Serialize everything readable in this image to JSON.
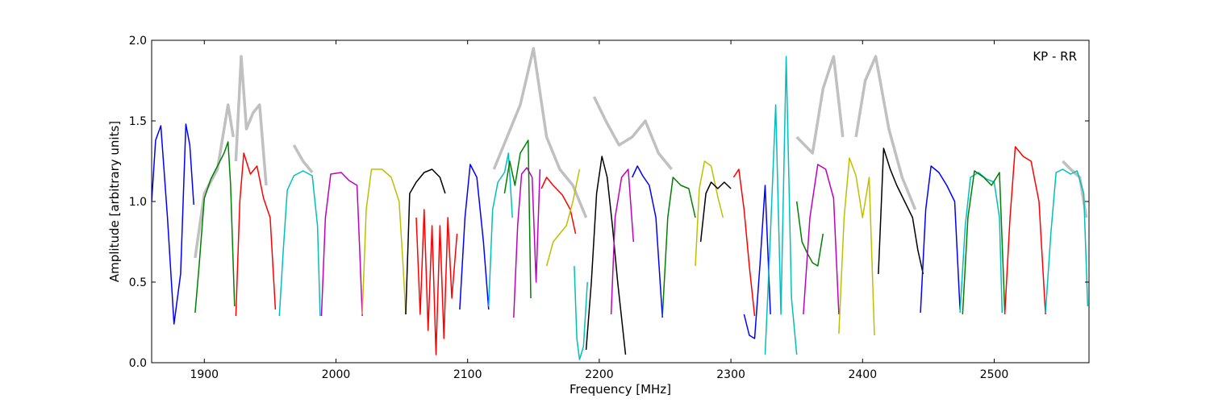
{
  "chart_data": {
    "type": "line",
    "title": "",
    "xlabel": "Frequency [MHz]",
    "ylabel": "Amplitude [arbitrary units]",
    "annotation": "KP - RR",
    "xlim": [
      1860,
      2572
    ],
    "ylim": [
      0.0,
      2.0
    ],
    "xticks": [
      1900,
      2000,
      2100,
      2200,
      2300,
      2400,
      2500
    ],
    "yticks": [
      0.0,
      0.5,
      1.0,
      1.5,
      2.0
    ],
    "xtick_labels": [
      "1900",
      "2000",
      "2100",
      "2200",
      "2300",
      "2400",
      "2500"
    ],
    "ytick_labels": [
      "0.0",
      "0.5",
      "1.0",
      "1.5",
      "2.0"
    ],
    "grid": false,
    "legend": "none",
    "reference_color": "#c0c0c0",
    "colors": [
      "#0000ff",
      "#008000",
      "#ff0000",
      "#00bfbf",
      "#bf00bf",
      "#bfbf00",
      "#000000"
    ],
    "series": [
      {
        "color": "#0000ff",
        "x": [
          1860,
          1863,
          1867,
          1872,
          1877,
          1882,
          1886,
          1889,
          1892
        ],
        "y": [
          1.0,
          1.38,
          1.47,
          0.9,
          0.24,
          0.55,
          1.48,
          1.35,
          0.98
        ]
      },
      {
        "color": "#008000",
        "x": [
          1893,
          1896,
          1900,
          1905,
          1910,
          1915,
          1918,
          1920,
          1923
        ],
        "y": [
          0.31,
          0.6,
          1.02,
          1.14,
          1.22,
          1.3,
          1.37,
          1.1,
          0.35
        ]
      },
      {
        "color": "#ff0000",
        "x": [
          1924,
          1927,
          1930,
          1935,
          1940,
          1945,
          1950,
          1954
        ],
        "y": [
          0.29,
          1.0,
          1.3,
          1.17,
          1.22,
          1.02,
          0.9,
          0.33
        ]
      },
      {
        "color": "#00bfbf",
        "x": [
          1957,
          1960,
          1963,
          1968,
          1975,
          1982,
          1986,
          1988
        ],
        "y": [
          0.29,
          0.7,
          1.07,
          1.16,
          1.19,
          1.16,
          0.85,
          0.29
        ]
      },
      {
        "color": "#bf00bf",
        "x": [
          1989,
          1992,
          1996,
          2004,
          2010,
          2016,
          2018,
          2020
        ],
        "y": [
          0.29,
          0.9,
          1.17,
          1.18,
          1.13,
          1.1,
          0.7,
          0.29
        ]
      },
      {
        "color": "#bfbf00",
        "x": [
          2020,
          2023,
          2027,
          2035,
          2042,
          2048,
          2051,
          2053
        ],
        "y": [
          0.3,
          0.95,
          1.2,
          1.2,
          1.15,
          1.0,
          0.6,
          0.3
        ]
      },
      {
        "color": "#000000",
        "x": [
          2053,
          2056,
          2061,
          2067,
          2073,
          2079,
          2083
        ],
        "y": [
          0.3,
          1.05,
          1.12,
          1.18,
          1.2,
          1.15,
          1.05
        ]
      },
      {
        "color": "#ff0000",
        "x": [
          2061,
          2064,
          2067,
          2070,
          2073,
          2076,
          2079,
          2082,
          2085,
          2088,
          2092
        ],
        "y": [
          0.9,
          0.3,
          0.95,
          0.2,
          0.85,
          0.05,
          0.85,
          0.15,
          0.9,
          0.4,
          0.8
        ]
      },
      {
        "color": "#0000ff",
        "x": [
          2094,
          2098,
          2102,
          2107,
          2112,
          2116
        ],
        "y": [
          0.33,
          0.9,
          1.23,
          1.15,
          0.75,
          0.33
        ]
      },
      {
        "color": "#00bfbf",
        "x": [
          2116,
          2119,
          2123,
          2128,
          2131,
          2134
        ],
        "y": [
          0.35,
          0.95,
          1.12,
          1.18,
          1.3,
          0.9
        ]
      },
      {
        "color": "#bf00bf",
        "x": [
          2135,
          2138,
          2141,
          2145,
          2149,
          2152,
          2155
        ],
        "y": [
          0.28,
          0.85,
          1.17,
          1.21,
          1.15,
          0.5,
          1.2
        ]
      },
      {
        "color": "#008000",
        "x": [
          2128,
          2132,
          2136,
          2140,
          2146,
          2148
        ],
        "y": [
          1.05,
          1.25,
          1.1,
          1.3,
          1.38,
          0.4
        ]
      },
      {
        "color": "#ff0000",
        "x": [
          2156,
          2160,
          2165,
          2172,
          2178,
          2182
        ],
        "y": [
          1.08,
          1.15,
          1.1,
          1.04,
          0.95,
          0.8
        ]
      },
      {
        "color": "#bfbf00",
        "x": [
          2160,
          2165,
          2170,
          2175,
          2180,
          2185
        ],
        "y": [
          0.6,
          0.75,
          0.8,
          0.85,
          1.0,
          1.2
        ]
      },
      {
        "color": "#00bfbf",
        "x": [
          2181,
          2183,
          2185,
          2188,
          2191
        ],
        "y": [
          0.6,
          0.15,
          0.02,
          0.1,
          0.5
        ]
      },
      {
        "color": "#000000",
        "x": [
          2190,
          2194,
          2198,
          2202,
          2206,
          2210,
          2214,
          2220
        ],
        "y": [
          0.08,
          0.5,
          1.05,
          1.28,
          1.15,
          0.85,
          0.5,
          0.05
        ]
      },
      {
        "color": "#0000ff",
        "x": [
          2225,
          2229,
          2233,
          2238,
          2243,
          2248
        ],
        "y": [
          1.15,
          1.22,
          1.16,
          1.1,
          0.9,
          0.28
        ]
      },
      {
        "color": "#bf00bf",
        "x": [
          2209,
          2212,
          2217,
          2222,
          2226
        ],
        "y": [
          0.3,
          0.9,
          1.15,
          1.2,
          0.75
        ]
      },
      {
        "color": "#008000",
        "x": [
          2248,
          2252,
          2256,
          2262,
          2268,
          2273
        ],
        "y": [
          0.29,
          0.9,
          1.15,
          1.1,
          1.08,
          0.9
        ]
      },
      {
        "color": "#bfbf00",
        "x": [
          2273,
          2276,
          2280,
          2285,
          2290,
          2294
        ],
        "y": [
          0.6,
          1.08,
          1.25,
          1.22,
          1.03,
          0.9
        ]
      },
      {
        "color": "#000000",
        "x": [
          2277,
          2281,
          2285,
          2290,
          2295,
          2300
        ],
        "y": [
          0.75,
          1.05,
          1.12,
          1.08,
          1.12,
          1.08
        ]
      },
      {
        "color": "#ff0000",
        "x": [
          2302,
          2306,
          2310,
          2314,
          2318
        ],
        "y": [
          1.15,
          1.2,
          0.95,
          0.6,
          0.29
        ]
      },
      {
        "color": "#0000ff",
        "x": [
          2310,
          2314,
          2318,
          2322,
          2326,
          2330
        ],
        "y": [
          0.3,
          0.17,
          0.15,
          0.6,
          1.1,
          0.3
        ]
      },
      {
        "color": "#00bfbf",
        "x": [
          2326,
          2330,
          2334,
          2338,
          2342,
          2346,
          2350
        ],
        "y": [
          0.05,
          0.8,
          1.6,
          0.3,
          1.9,
          0.4,
          0.05
        ]
      },
      {
        "color": "#008000",
        "x": [
          2350,
          2354,
          2358,
          2362,
          2366,
          2370
        ],
        "y": [
          1.0,
          0.75,
          0.68,
          0.62,
          0.6,
          0.8
        ]
      },
      {
        "color": "#bf00bf",
        "x": [
          2355,
          2360,
          2366,
          2372,
          2378,
          2382
        ],
        "y": [
          0.3,
          0.9,
          1.23,
          1.2,
          1.02,
          0.3
        ]
      },
      {
        "color": "#bfbf00",
        "x": [
          2382,
          2386,
          2390,
          2395,
          2400,
          2405,
          2409
        ],
        "y": [
          0.18,
          0.9,
          1.27,
          1.16,
          0.9,
          1.15,
          0.17
        ]
      },
      {
        "color": "#000000",
        "x": [
          2412,
          2416,
          2421,
          2426,
          2432,
          2438,
          2442,
          2446
        ],
        "y": [
          0.55,
          1.33,
          1.2,
          1.1,
          1.0,
          0.9,
          0.7,
          0.55
        ]
      },
      {
        "color": "#0000ff",
        "x": [
          2444,
          2448,
          2452,
          2458,
          2464,
          2470,
          2474
        ],
        "y": [
          0.31,
          0.95,
          1.22,
          1.18,
          1.1,
          1.0,
          0.33
        ]
      },
      {
        "color": "#00bfbf",
        "x": [
          2474,
          2478,
          2482,
          2488,
          2494,
          2500,
          2504,
          2506
        ],
        "y": [
          0.31,
          0.85,
          1.15,
          1.18,
          1.14,
          1.12,
          0.9,
          0.31
        ]
      },
      {
        "color": "#008000",
        "x": [
          2476,
          2480,
          2485,
          2492,
          2498,
          2504,
          2508
        ],
        "y": [
          0.3,
          0.9,
          1.19,
          1.15,
          1.1,
          1.18,
          0.32
        ]
      },
      {
        "color": "#ff0000",
        "x": [
          2508,
          2512,
          2516,
          2522,
          2528,
          2534,
          2539
        ],
        "y": [
          0.3,
          0.9,
          1.34,
          1.28,
          1.25,
          1.0,
          0.3
        ]
      },
      {
        "color": "#00bfbf",
        "x": [
          2539,
          2543,
          2547,
          2552,
          2558,
          2563,
          2568,
          2571
        ],
        "y": [
          0.31,
          0.8,
          1.18,
          1.2,
          1.17,
          1.19,
          1.05,
          0.35
        ]
      }
    ],
    "reference": [
      {
        "x": [
          1893,
          1900,
          1910,
          1918,
          1922
        ],
        "y": [
          0.65,
          1.05,
          1.2,
          1.6,
          1.4
        ]
      },
      {
        "x": [
          1924,
          1928,
          1932,
          1937,
          1942,
          1947
        ],
        "y": [
          1.25,
          1.9,
          1.45,
          1.55,
          1.6,
          1.1
        ]
      },
      {
        "x": [
          1968,
          1975,
          1982
        ],
        "y": [
          1.35,
          1.25,
          1.18
        ]
      },
      {
        "x": [
          2120,
          2130,
          2140,
          2150,
          2160,
          2170,
          2180,
          2190
        ],
        "y": [
          1.2,
          1.4,
          1.6,
          1.95,
          1.4,
          1.2,
          1.1,
          0.9
        ]
      },
      {
        "x": [
          2196,
          2205,
          2215,
          2225,
          2235,
          2245,
          2255
        ],
        "y": [
          1.65,
          1.5,
          1.35,
          1.4,
          1.5,
          1.3,
          1.2
        ]
      },
      {
        "x": [
          2350,
          2356,
          2362,
          2370,
          2378,
          2385
        ],
        "y": [
          1.4,
          1.35,
          1.3,
          1.7,
          1.9,
          1.4
        ]
      },
      {
        "x": [
          2395,
          2402,
          2410,
          2420,
          2430,
          2440
        ],
        "y": [
          1.4,
          1.75,
          1.9,
          1.45,
          1.15,
          0.95
        ]
      },
      {
        "x": [
          2552,
          2558,
          2565,
          2570
        ],
        "y": [
          1.25,
          1.2,
          1.15,
          0.9
        ]
      }
    ]
  }
}
